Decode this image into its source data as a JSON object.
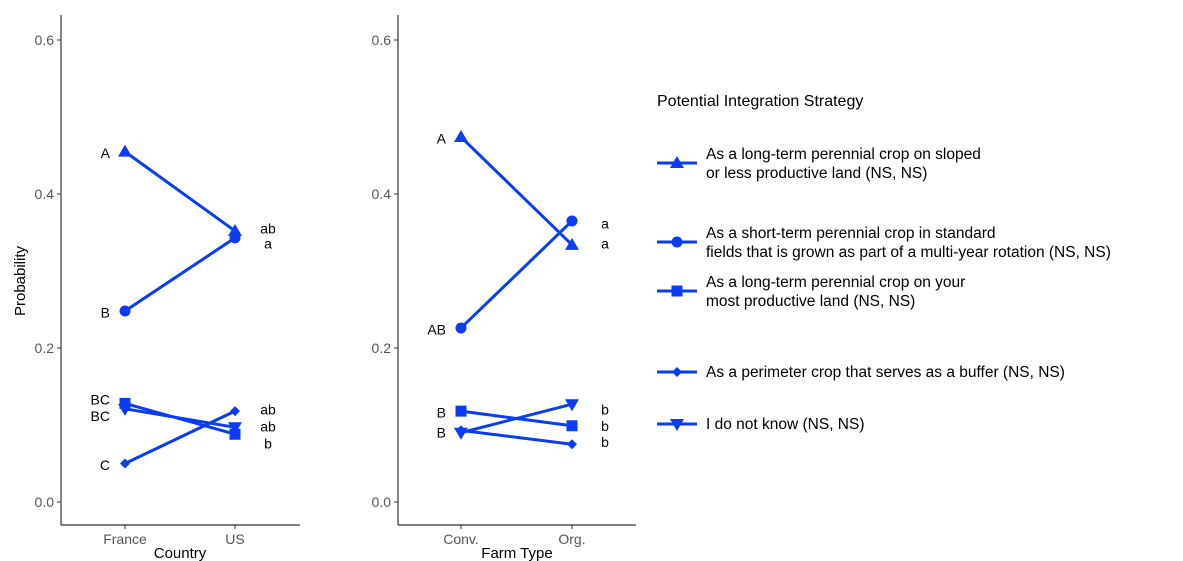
{
  "legend": {
    "title": "Potential Integration Strategy",
    "entries": [
      {
        "shape": "triangle-up",
        "lines": [
          "As a long-term perennial crop on sloped",
          "or less productive land (NS, NS)"
        ]
      },
      {
        "shape": "circle",
        "lines": [
          "As a short-term perennial crop in standard",
          "fields that is grown as part of a multi-year rotation (NS, NS)"
        ]
      },
      {
        "shape": "square",
        "lines": [
          "As a long-term perennial crop on your",
          "most productive land (NS, NS)"
        ]
      },
      {
        "shape": "diamond",
        "lines": [
          "As a perimeter crop that serves as a buffer (NS, NS)"
        ]
      },
      {
        "shape": "triangle-down",
        "lines": [
          "I do not know (NS, NS)"
        ]
      }
    ]
  },
  "chart_data": [
    {
      "type": "line",
      "xlabel": "Country",
      "ylabel": "Probability",
      "categories": [
        "France",
        "US"
      ],
      "ylim": [
        0,
        0.6
      ],
      "yticks": [
        "0.0",
        "0.2",
        "0.4",
        "0.6"
      ],
      "color": "#0a3cf0",
      "series": [
        {
          "shape": "triangle-up",
          "values": [
            0.455,
            0.352
          ]
        },
        {
          "shape": "circle",
          "values": [
            0.248,
            0.343
          ]
        },
        {
          "shape": "square",
          "values": [
            0.128,
            0.088
          ]
        },
        {
          "shape": "diamond",
          "values": [
            0.05,
            0.118
          ]
        },
        {
          "shape": "triangle-down",
          "values": [
            0.121,
            0.097
          ]
        }
      ],
      "left_labels": [
        {
          "text": "A",
          "y": 0.453
        },
        {
          "text": "B",
          "y": 0.246
        },
        {
          "text": "BC",
          "y": 0.133
        },
        {
          "text": "BC",
          "y": 0.112
        },
        {
          "text": "C",
          "y": 0.048
        }
      ],
      "right_labels": [
        {
          "text": "ab",
          "y": 0.355
        },
        {
          "text": "a",
          "y": 0.336
        },
        {
          "text": "ab",
          "y": 0.12
        },
        {
          "text": "ab",
          "y": 0.098
        },
        {
          "text": "b",
          "y": 0.076
        }
      ]
    },
    {
      "type": "line",
      "xlabel": "Farm Type",
      "ylabel": "",
      "categories": [
        "Conv.",
        "Org."
      ],
      "ylim": [
        0,
        0.6
      ],
      "yticks": [
        "0.0",
        "0.2",
        "0.4",
        "0.6"
      ],
      "color": "#0a3cf0",
      "series": [
        {
          "shape": "triangle-up",
          "values": [
            0.474,
            0.334
          ]
        },
        {
          "shape": "circle",
          "values": [
            0.226,
            0.365
          ]
        },
        {
          "shape": "square",
          "values": [
            0.118,
            0.099
          ]
        },
        {
          "shape": "diamond",
          "values": [
            0.093,
            0.075
          ]
        },
        {
          "shape": "triangle-down",
          "values": [
            0.09,
            0.127
          ]
        }
      ],
      "left_labels": [
        {
          "text": "A",
          "y": 0.472
        },
        {
          "text": "AB",
          "y": 0.224
        },
        {
          "text": "B",
          "y": 0.116
        },
        {
          "text": "B",
          "y": 0.09
        }
      ],
      "right_labels": [
        {
          "text": "a",
          "y": 0.362
        },
        {
          "text": "a",
          "y": 0.336
        },
        {
          "text": "b",
          "y": 0.12
        },
        {
          "text": "b",
          "y": 0.099
        },
        {
          "text": "b",
          "y": 0.078
        }
      ]
    }
  ]
}
